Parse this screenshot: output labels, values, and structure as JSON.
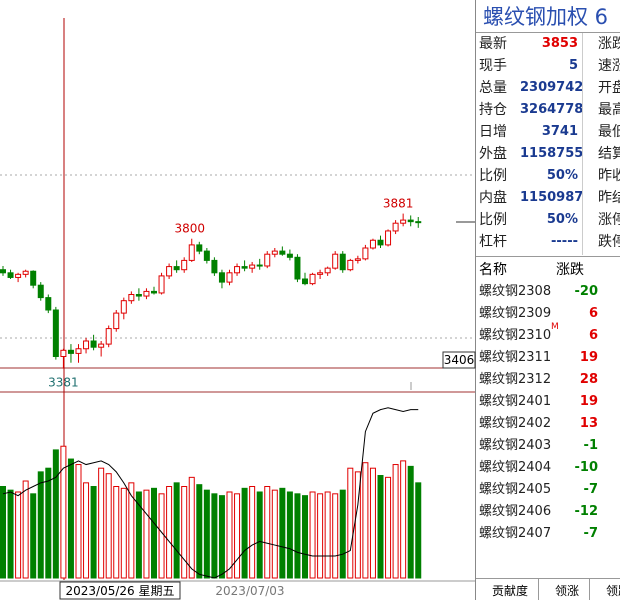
{
  "chart": {
    "type": "candlestick",
    "ylim": [
      3370,
      4570
    ],
    "up_color": "#e00000",
    "down_color": "#008000",
    "candles": [
      [
        3700,
        3712,
        3680,
        3690
      ],
      [
        3690,
        3700,
        3670,
        3675
      ],
      [
        3675,
        3690,
        3660,
        3685
      ],
      [
        3685,
        3700,
        3675,
        3695
      ],
      [
        3695,
        3698,
        3640,
        3650
      ],
      [
        3650,
        3660,
        3600,
        3610
      ],
      [
        3610,
        3620,
        3560,
        3570
      ],
      [
        3570,
        3580,
        3410,
        3420
      ],
      [
        3420,
        3445,
        3381,
        3440
      ],
      [
        3440,
        3460,
        3400,
        3430
      ],
      [
        3430,
        3460,
        3400,
        3445
      ],
      [
        3445,
        3480,
        3430,
        3470
      ],
      [
        3470,
        3490,
        3440,
        3450
      ],
      [
        3450,
        3470,
        3420,
        3460
      ],
      [
        3460,
        3520,
        3450,
        3510
      ],
      [
        3510,
        3570,
        3500,
        3560
      ],
      [
        3560,
        3610,
        3540,
        3600
      ],
      [
        3600,
        3630,
        3590,
        3620
      ],
      [
        3620,
        3640,
        3600,
        3615
      ],
      [
        3615,
        3640,
        3605,
        3630
      ],
      [
        3630,
        3645,
        3620,
        3625
      ],
      [
        3625,
        3690,
        3620,
        3680
      ],
      [
        3680,
        3720,
        3670,
        3710
      ],
      [
        3710,
        3730,
        3690,
        3700
      ],
      [
        3700,
        3740,
        3690,
        3730
      ],
      [
        3730,
        3800,
        3725,
        3780
      ],
      [
        3780,
        3790,
        3750,
        3760
      ],
      [
        3760,
        3770,
        3720,
        3730
      ],
      [
        3730,
        3740,
        3680,
        3690
      ],
      [
        3690,
        3700,
        3640,
        3660
      ],
      [
        3660,
        3700,
        3650,
        3690
      ],
      [
        3690,
        3720,
        3680,
        3710
      ],
      [
        3710,
        3730,
        3695,
        3705
      ],
      [
        3705,
        3725,
        3690,
        3715
      ],
      [
        3715,
        3735,
        3700,
        3712
      ],
      [
        3712,
        3760,
        3705,
        3750
      ],
      [
        3750,
        3770,
        3740,
        3760
      ],
      [
        3760,
        3775,
        3745,
        3750
      ],
      [
        3750,
        3765,
        3730,
        3740
      ],
      [
        3740,
        3750,
        3660,
        3670
      ],
      [
        3670,
        3690,
        3650,
        3655
      ],
      [
        3655,
        3690,
        3650,
        3685
      ],
      [
        3685,
        3700,
        3670,
        3690
      ],
      [
        3690,
        3710,
        3680,
        3705
      ],
      [
        3705,
        3760,
        3700,
        3750
      ],
      [
        3750,
        3760,
        3690,
        3700
      ],
      [
        3700,
        3735,
        3695,
        3730
      ],
      [
        3730,
        3745,
        3720,
        3735
      ],
      [
        3735,
        3780,
        3730,
        3770
      ],
      [
        3770,
        3800,
        3765,
        3795
      ],
      [
        3795,
        3810,
        3770,
        3780
      ],
      [
        3780,
        3830,
        3775,
        3825
      ],
      [
        3825,
        3860,
        3815,
        3850
      ],
      [
        3850,
        3881,
        3840,
        3860
      ],
      [
        3860,
        3875,
        3840,
        3855
      ],
      [
        3855,
        3870,
        3835,
        3853
      ]
    ],
    "vol_ylim": [
      0,
      100
    ],
    "volume": [
      50,
      48,
      47,
      53,
      46,
      58,
      60,
      70,
      72,
      65,
      62,
      52,
      50,
      60,
      57,
      50,
      49,
      52,
      47,
      48,
      49,
      46,
      50,
      52,
      50,
      55,
      51,
      48,
      46,
      45,
      47,
      46,
      49,
      50,
      47,
      50,
      48,
      49,
      47,
      46,
      45,
      47,
      46,
      47,
      46,
      48,
      60,
      58,
      63,
      60,
      56,
      55,
      62,
      64,
      61,
      52
    ],
    "open_interest": [
      46,
      47,
      45,
      48,
      50,
      52,
      53,
      55,
      60,
      62,
      64,
      62,
      63,
      64,
      62,
      58,
      52,
      45,
      40,
      35,
      30,
      25,
      20,
      15,
      10,
      5,
      2,
      1,
      0,
      2,
      5,
      10,
      15,
      18,
      20,
      19,
      18,
      17,
      16,
      14,
      13,
      12,
      12,
      12,
      12,
      13,
      15,
      40,
      80,
      90,
      92,
      93,
      92,
      91,
      92,
      92
    ],
    "crosshair": {
      "price": 3406,
      "date": "2023/05/26 星期五"
    },
    "date_label": "2023/07/03"
  },
  "quote": {
    "title": "螺纹钢加权 6",
    "left": [
      {
        "label": "最新",
        "value": 3853
      },
      {
        "label": "现手",
        "value": 5
      },
      {
        "label": "总量",
        "value": 2309742
      },
      {
        "label": "持仓",
        "value": 3264778
      },
      {
        "label": "日增",
        "value": 3741
      },
      {
        "label": "外盘",
        "value": 1158755
      },
      {
        "label": "比例",
        "value": "50%"
      },
      {
        "label": "内盘",
        "value": 1150987
      },
      {
        "label": "比例",
        "value": "50%"
      },
      {
        "label": "杠杆",
        "value": "-----"
      }
    ],
    "right": [
      "涨跌",
      "速涨",
      "开盘",
      "最高",
      "最低",
      "结算",
      "昨收",
      "昨结",
      "涨停",
      "跌停"
    ]
  },
  "contracts": {
    "headers": [
      "名称",
      "涨跌"
    ],
    "rows": [
      {
        "name": "螺纹钢2308",
        "change": -20
      },
      {
        "name": "螺纹钢2309",
        "change": 6
      },
      {
        "name": "螺纹钢2310",
        "change": 6,
        "mark": "M"
      },
      {
        "name": "螺纹钢2311",
        "change": 19
      },
      {
        "name": "螺纹钢2312",
        "change": 28
      },
      {
        "name": "螺纹钢2401",
        "change": 19
      },
      {
        "name": "螺纹钢2402",
        "change": 13
      },
      {
        "name": "螺纹钢2403",
        "change": -1
      },
      {
        "name": "螺纹钢2404",
        "change": -10
      },
      {
        "name": "螺纹钢2405",
        "change": -7
      },
      {
        "name": "螺纹钢2406",
        "change": -12
      },
      {
        "name": "螺纹钢2407",
        "change": -7
      }
    ]
  },
  "tabs": [
    "贡献度",
    "领涨",
    "领跌"
  ]
}
